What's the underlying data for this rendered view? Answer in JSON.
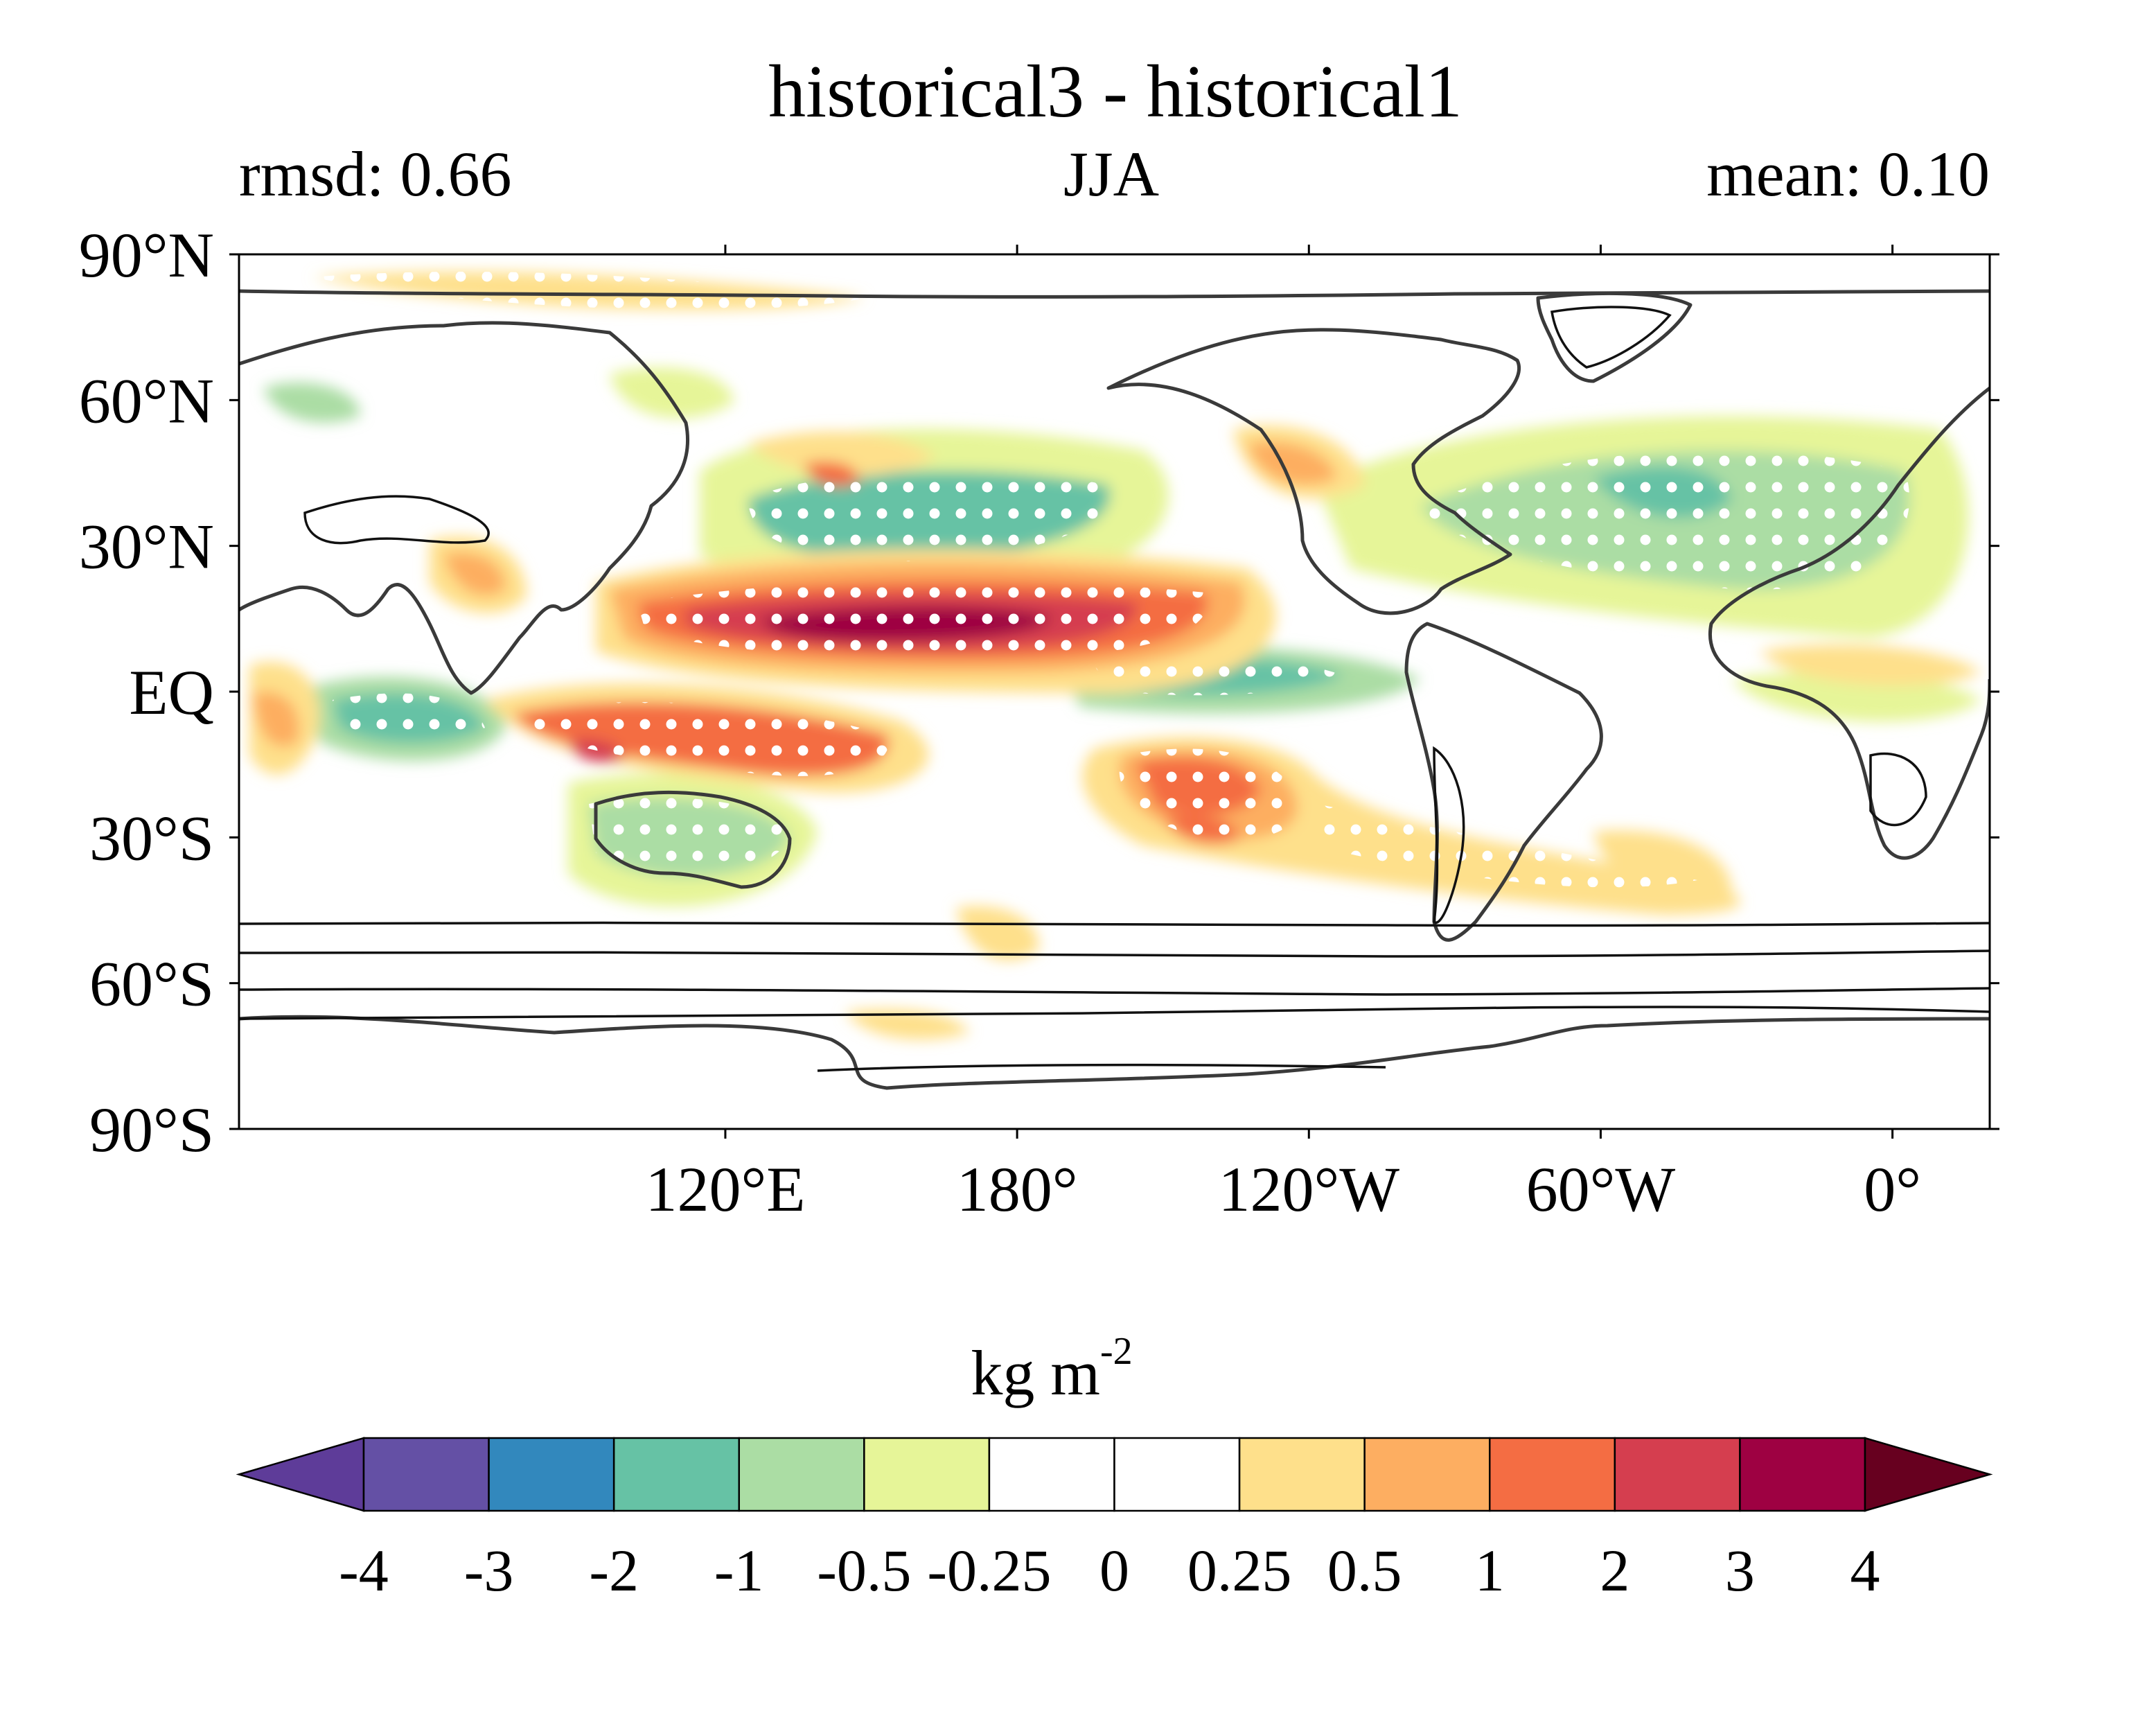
{
  "title": "historical3 - historical1",
  "left_label": "rmsd: 0.66",
  "center_label": "JJA",
  "right_label": "mean: 0.10",
  "lat_ticks": [
    {
      "label": "90°N",
      "lat": 90
    },
    {
      "label": "60°N",
      "lat": 60
    },
    {
      "label": "30°N",
      "lat": 30
    },
    {
      "label": "EQ",
      "lat": 0
    },
    {
      "label": "30°S",
      "lat": -30
    },
    {
      "label": "60°S",
      "lat": -60
    },
    {
      "label": "90°S",
      "lat": -90
    }
  ],
  "lon_ticks": [
    {
      "label": "120°E",
      "lon": 120
    },
    {
      "label": "180°",
      "lon": 180
    },
    {
      "label": "120°W",
      "lon": 240
    },
    {
      "label": "60°W",
      "lon": 300
    },
    {
      "label": "0°",
      "lon": 360
    }
  ],
  "colorbar": {
    "unit": "kg m",
    "unit_exp": "-2",
    "tick_labels": [
      "-4",
      "-3",
      "-2",
      "-1",
      "-0.5",
      "-0.25",
      "0",
      "0.25",
      "0.5",
      "1",
      "2",
      "3",
      "4"
    ],
    "colors": [
      "#5e3c99",
      "#6450a5",
      "#3288bd",
      "#66c2a5",
      "#abdda4",
      "#e6f598",
      "#ffffff",
      "#ffffff",
      "#fee08b",
      "#fdae61",
      "#f46d43",
      "#d53e4f",
      "#9e0142",
      "#67001f"
    ]
  }
}
